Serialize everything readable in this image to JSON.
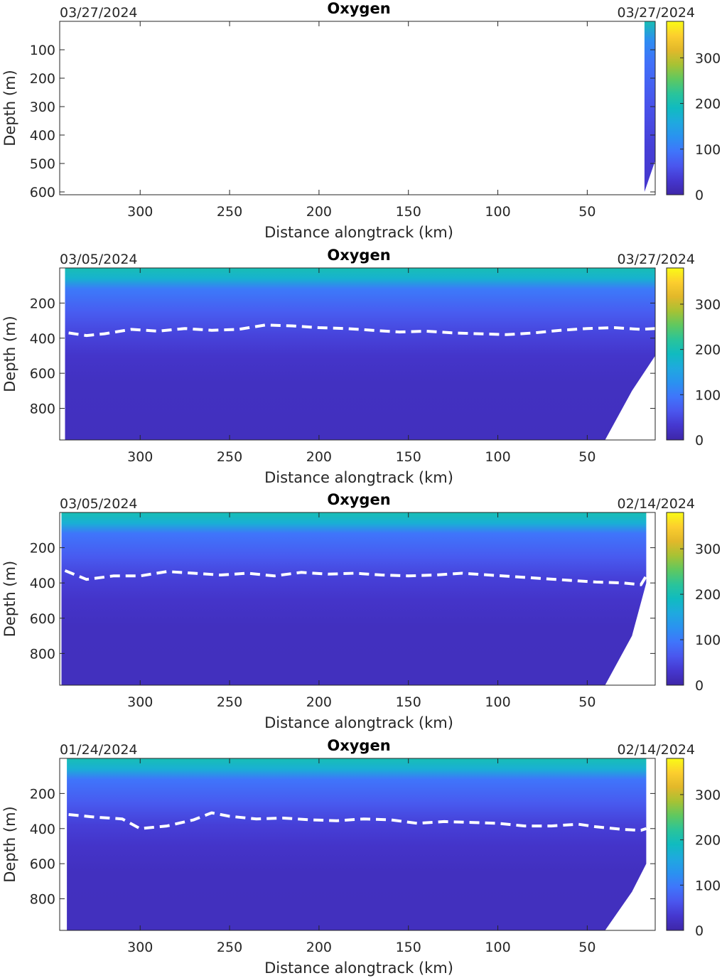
{
  "colorbar": {
    "ticks": [
      0,
      100,
      200,
      300
    ],
    "max": 380,
    "colormap": [
      "#3e26a8",
      "#4537cf",
      "#4a56ee",
      "#3f75fb",
      "#2a92f0",
      "#1fa9df",
      "#10bbc0",
      "#2ac49a",
      "#5fc860",
      "#a7c234",
      "#e2b82a",
      "#fcce2e",
      "#f9fb15"
    ]
  },
  "chart_data": [
    {
      "type": "heatmap",
      "title": "Oxygen",
      "date_left": "03/27/2024",
      "date_right": "03/27/2024",
      "xlabel": "Distance alongtrack (km)",
      "ylabel": "Depth (m)",
      "x_reversed": true,
      "y_reversed": true,
      "xlim": [
        345,
        12
      ],
      "ylim": [
        0,
        610
      ],
      "xticks": [
        300,
        250,
        200,
        150,
        100,
        50
      ],
      "yticks": [
        100,
        200,
        300,
        400,
        500,
        600
      ],
      "clim": [
        0,
        380
      ],
      "data_x_range": [
        12,
        18
      ],
      "max_depth_profile": [
        [
          18,
          600
        ],
        [
          12,
          490
        ]
      ],
      "oxygen_profile": [
        [
          0,
          200
        ],
        [
          70,
          120
        ],
        [
          150,
          90
        ],
        [
          300,
          60
        ],
        [
          450,
          40
        ],
        [
          600,
          30
        ]
      ],
      "contour_dashed": []
    },
    {
      "type": "heatmap",
      "title": "Oxygen",
      "date_left": "03/05/2024",
      "date_right": "03/27/2024",
      "xlabel": "Distance alongtrack (km)",
      "ylabel": "Depth (m)",
      "x_reversed": true,
      "y_reversed": true,
      "xlim": [
        345,
        12
      ],
      "ylim": [
        0,
        980
      ],
      "xticks": [
        300,
        250,
        200,
        150,
        100,
        50
      ],
      "yticks": [
        200,
        400,
        600,
        800
      ],
      "clim": [
        0,
        380
      ],
      "data_x_range": [
        12,
        342
      ],
      "max_depth_profile": [
        [
          40,
          980
        ],
        [
          25,
          700
        ],
        [
          12,
          500
        ]
      ],
      "oxygen_profile": [
        [
          0,
          200
        ],
        [
          60,
          175
        ],
        [
          120,
          100
        ],
        [
          250,
          70
        ],
        [
          380,
          45
        ],
        [
          500,
          28
        ],
        [
          650,
          20
        ],
        [
          980,
          18
        ]
      ],
      "contour_dashed": [
        [
          340,
          370
        ],
        [
          330,
          385
        ],
        [
          320,
          375
        ],
        [
          305,
          350
        ],
        [
          290,
          360
        ],
        [
          275,
          345
        ],
        [
          260,
          355
        ],
        [
          245,
          350
        ],
        [
          230,
          325
        ],
        [
          215,
          330
        ],
        [
          200,
          340
        ],
        [
          185,
          345
        ],
        [
          170,
          355
        ],
        [
          155,
          365
        ],
        [
          140,
          360
        ],
        [
          125,
          370
        ],
        [
          110,
          375
        ],
        [
          95,
          380
        ],
        [
          80,
          370
        ],
        [
          65,
          355
        ],
        [
          50,
          345
        ],
        [
          35,
          340
        ],
        [
          20,
          350
        ],
        [
          12,
          345
        ]
      ]
    },
    {
      "type": "heatmap",
      "title": "Oxygen",
      "date_left": "03/05/2024",
      "date_right": "02/14/2024",
      "xlabel": "Distance alongtrack (km)",
      "ylabel": "Depth (m)",
      "x_reversed": true,
      "y_reversed": true,
      "xlim": [
        345,
        12
      ],
      "ylim": [
        0,
        980
      ],
      "xticks": [
        300,
        250,
        200,
        150,
        100,
        50
      ],
      "yticks": [
        200,
        400,
        600,
        800
      ],
      "clim": [
        0,
        380
      ],
      "data_x_range": [
        17,
        344
      ],
      "max_depth_profile": [
        [
          40,
          980
        ],
        [
          25,
          700
        ],
        [
          17,
          400
        ]
      ],
      "oxygen_profile": [
        [
          0,
          200
        ],
        [
          60,
          170
        ],
        [
          120,
          95
        ],
        [
          250,
          68
        ],
        [
          380,
          40
        ],
        [
          500,
          27
        ],
        [
          650,
          19
        ],
        [
          980,
          18
        ]
      ],
      "contour_dashed": [
        [
          342,
          330
        ],
        [
          330,
          380
        ],
        [
          315,
          360
        ],
        [
          300,
          360
        ],
        [
          285,
          335
        ],
        [
          270,
          345
        ],
        [
          255,
          355
        ],
        [
          240,
          345
        ],
        [
          225,
          360
        ],
        [
          210,
          340
        ],
        [
          195,
          350
        ],
        [
          180,
          345
        ],
        [
          165,
          355
        ],
        [
          150,
          360
        ],
        [
          135,
          355
        ],
        [
          120,
          345
        ],
        [
          105,
          355
        ],
        [
          90,
          365
        ],
        [
          75,
          375
        ],
        [
          60,
          385
        ],
        [
          45,
          395
        ],
        [
          30,
          400
        ],
        [
          20,
          410
        ],
        [
          17,
          360
        ]
      ]
    },
    {
      "type": "heatmap",
      "title": "Oxygen",
      "date_left": "01/24/2024",
      "date_right": "02/14/2024",
      "xlabel": "Distance alongtrack (km)",
      "ylabel": "Depth (m)",
      "x_reversed": true,
      "y_reversed": true,
      "xlim": [
        345,
        12
      ],
      "ylim": [
        0,
        980
      ],
      "xticks": [
        300,
        250,
        200,
        150,
        100,
        50
      ],
      "yticks": [
        200,
        400,
        600,
        800
      ],
      "clim": [
        0,
        380
      ],
      "data_x_range": [
        17,
        341
      ],
      "max_depth_profile": [
        [
          40,
          980
        ],
        [
          25,
          760
        ],
        [
          17,
          600
        ]
      ],
      "oxygen_profile": [
        [
          0,
          200
        ],
        [
          60,
          170
        ],
        [
          120,
          95
        ],
        [
          250,
          68
        ],
        [
          380,
          40
        ],
        [
          500,
          27
        ],
        [
          650,
          19
        ],
        [
          980,
          18
        ]
      ],
      "contour_dashed": [
        [
          340,
          320
        ],
        [
          325,
          335
        ],
        [
          310,
          345
        ],
        [
          300,
          400
        ],
        [
          285,
          385
        ],
        [
          270,
          350
        ],
        [
          260,
          310
        ],
        [
          250,
          330
        ],
        [
          235,
          345
        ],
        [
          220,
          340
        ],
        [
          205,
          350
        ],
        [
          190,
          355
        ],
        [
          175,
          345
        ],
        [
          160,
          350
        ],
        [
          145,
          370
        ],
        [
          130,
          360
        ],
        [
          115,
          365
        ],
        [
          100,
          370
        ],
        [
          85,
          385
        ],
        [
          70,
          385
        ],
        [
          55,
          375
        ],
        [
          45,
          390
        ],
        [
          30,
          405
        ],
        [
          20,
          410
        ],
        [
          17,
          400
        ]
      ]
    }
  ]
}
